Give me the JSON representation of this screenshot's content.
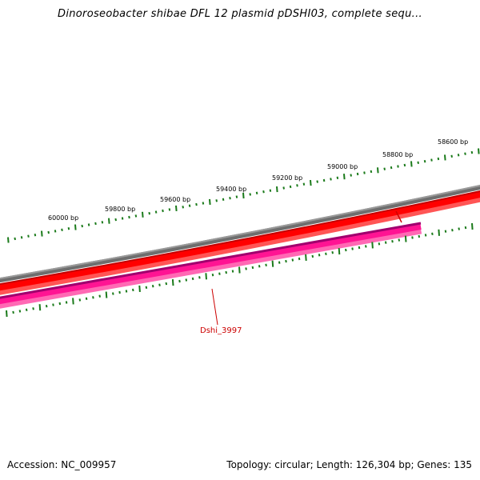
{
  "title": "Dinoroseobacter shibae DFL 12 plasmid pDSHI03, complete sequ...",
  "scale": {
    "labels": [
      "60000 bp",
      "59800 bp",
      "59600 bp",
      "59400 bp",
      "59200 bp",
      "59000 bp",
      "58800 bp",
      "58600 bp"
    ],
    "label_color": "#000000",
    "tick_color": "#1a7a1a"
  },
  "tracks": {
    "backbone_color": "#808080",
    "forward_cds_color": "#ff0000",
    "reverse_cds_color": "#ff1493"
  },
  "gene_label": "Dshi_3997",
  "footer": {
    "accession": "Accession: NC_009957",
    "summary": "Topology: circular; Length: 126,304 bp; Genes: 135"
  }
}
